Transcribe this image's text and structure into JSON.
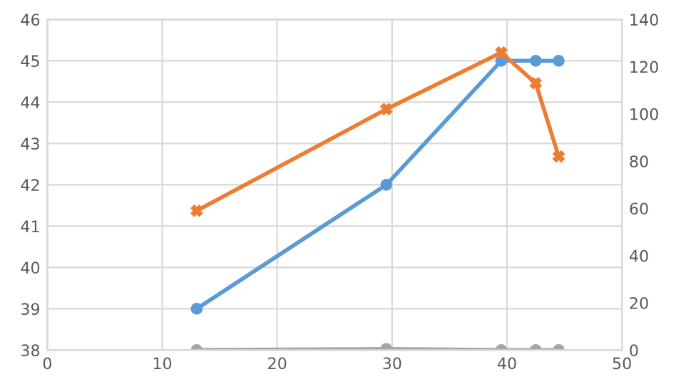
{
  "chart_data": {
    "type": "line",
    "xlim": [
      0,
      50
    ],
    "xticks": [
      0,
      10,
      20,
      30,
      40,
      50
    ],
    "ylim": [
      38,
      46
    ],
    "yticks": [
      38,
      39,
      40,
      41,
      42,
      43,
      44,
      45,
      46
    ],
    "y2lim": [
      0,
      140
    ],
    "y2ticks": [
      0,
      20,
      40,
      60,
      80,
      100,
      120,
      140
    ],
    "grid": true,
    "x": [
      13,
      29.5,
      39.5,
      42.5,
      44.5
    ],
    "series": [
      {
        "color": "#5b9bd5",
        "marker": "circle",
        "values": [
          39,
          42,
          45,
          45,
          45
        ]
      },
      {
        "color": "#ed7d31",
        "marker": "cross",
        "axis": "y2",
        "values": [
          59,
          102,
          126,
          113,
          82
        ]
      },
      {
        "color": "#a5a5a5",
        "marker": "circle",
        "axis": "y2",
        "values": [
          0,
          0.5,
          0,
          0,
          0
        ]
      }
    ]
  }
}
